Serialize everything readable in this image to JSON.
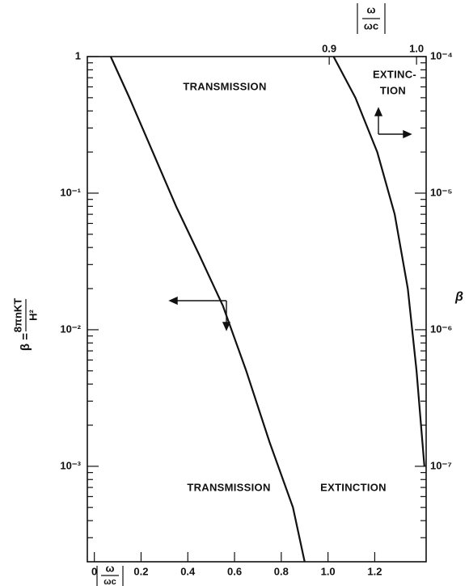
{
  "chart_data": {
    "type": "line",
    "y_label": {
      "lhs": "β =",
      "numerator": "8πnKT",
      "denominator": "H²"
    },
    "y2_label": "β",
    "x_label": {
      "numerator": "ω",
      "denominator": "ωc"
    },
    "x2_label": {
      "numerator": "ω",
      "denominator": "ωc"
    },
    "annotations": [
      "TRANSMISSION",
      "EXTINC-",
      "TION",
      "TRANSMISSION",
      "EXTINCTION"
    ],
    "log_y": true,
    "xlim": [
      -0.03,
      1.42
    ],
    "xticks": [
      0,
      0.2,
      0.4,
      0.6,
      0.8,
      {
        "value": 1,
        "label": "1.0"
      },
      1.2
    ],
    "x2lim": [
      0.623,
      1.011
    ],
    "x2ticks": [
      0.9,
      {
        "value": 1,
        "label": "1.0"
      }
    ],
    "ylim": [
      0.0002,
      1
    ],
    "yticks": [
      1,
      {
        "value": 0.1,
        "label": "10⁻¹"
      },
      {
        "value": 0.01,
        "label": "10⁻²"
      },
      {
        "value": 0.001,
        "label": "10⁻³"
      }
    ],
    "y2lim": [
      2e-08,
      0.0001
    ],
    "y2ticks": [
      {
        "value": 0.0001,
        "label": "10⁻⁴"
      },
      {
        "value": 1e-05,
        "label": "10⁻⁵"
      },
      {
        "value": 1e-06,
        "label": "10⁻⁶"
      },
      {
        "value": 1e-07,
        "label": "10⁻⁷"
      }
    ],
    "series": [
      {
        "color": "#111111",
        "x": [
          0.07,
          0.15,
          0.25,
          0.35,
          0.45,
          0.55,
          0.65,
          0.75,
          0.85,
          0.9
        ],
        "values": [
          1,
          0.5,
          0.2,
          0.08,
          0.035,
          0.015,
          0.005,
          0.0015,
          0.0005,
          0.0002
        ]
      },
      {
        "color": "#111111",
        "axis": "y2",
        "x_axis": "x2",
        "x": [
          0.905,
          0.93,
          0.955,
          0.975,
          0.99,
          1.0,
          1.009
        ],
        "values": [
          0.0001,
          5e-05,
          2e-05,
          7e-06,
          2e-06,
          5e-07,
          1e-07
        ]
      }
    ]
  }
}
